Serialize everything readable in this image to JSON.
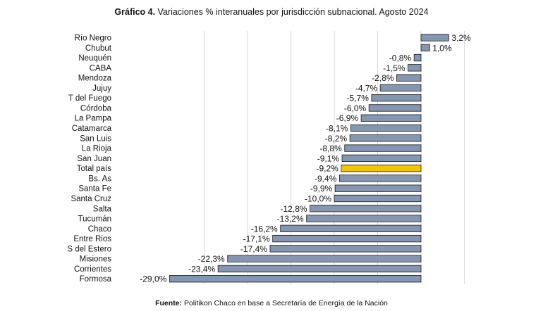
{
  "chart_data": {
    "type": "bar",
    "orientation": "horizontal",
    "title_bold": "Gráfico 4.",
    "title_rest": " Variaciones % interanuales por jurisdicción subnacional. Agosto 2024",
    "categories": [
      "Río Negro",
      "Chubut",
      "Neuquén",
      "CABA",
      "Mendoza",
      "Jujuy",
      "T del Fuego",
      "Córdoba",
      "La Pampa",
      "Catamarca",
      "San Luis",
      "La Rioja",
      "San Juan",
      "Total país",
      "Bs. As",
      "Santa Fe",
      "Santa Cruz",
      "Salta",
      "Tucumán",
      "Chaco",
      "Entre Rios",
      "S del Estero",
      "Misiones",
      "Corrientes",
      "Formosa"
    ],
    "values": [
      3.2,
      1.0,
      -0.8,
      -1.5,
      -2.8,
      -4.7,
      -5.7,
      -6.0,
      -6.9,
      -8.1,
      -8.2,
      -8.8,
      -9.1,
      -9.2,
      -9.4,
      -9.9,
      -10.0,
      -12.8,
      -13.2,
      -16.2,
      -17.1,
      -17.4,
      -22.3,
      -23.4,
      -29.0
    ],
    "value_labels": [
      "3,2%",
      "1,0%",
      "-0,8%",
      "-1,5%",
      "-2,8%",
      "-4,7%",
      "-5,7%",
      "-6,0%",
      "-6,9%",
      "-8,1%",
      "-8,2%",
      "-8,8%",
      "-9,1%",
      "-9,2%",
      "-9,4%",
      "-9,9%",
      "-10,0%",
      "-12,8%",
      "-13,2%",
      "-16,2%",
      "-17,1%",
      "-17,4%",
      "-22,3%",
      "-23,4%",
      "-29,0%"
    ],
    "highlight": "Total país",
    "xlim": [
      -30,
      5
    ],
    "gridline_values": [
      -25,
      -20,
      -15,
      -10,
      -5,
      0,
      5
    ],
    "colors": {
      "bar": "#8496b0",
      "highlight": "#f2c500",
      "bar_border": "#1a1a1a",
      "grid": "#d9d9d9"
    },
    "xlabel": "",
    "ylabel": ""
  },
  "source": {
    "bold": "Fuente:",
    "text": " Politikon Chaco en base a Secretaría de Energía de la Nación"
  }
}
